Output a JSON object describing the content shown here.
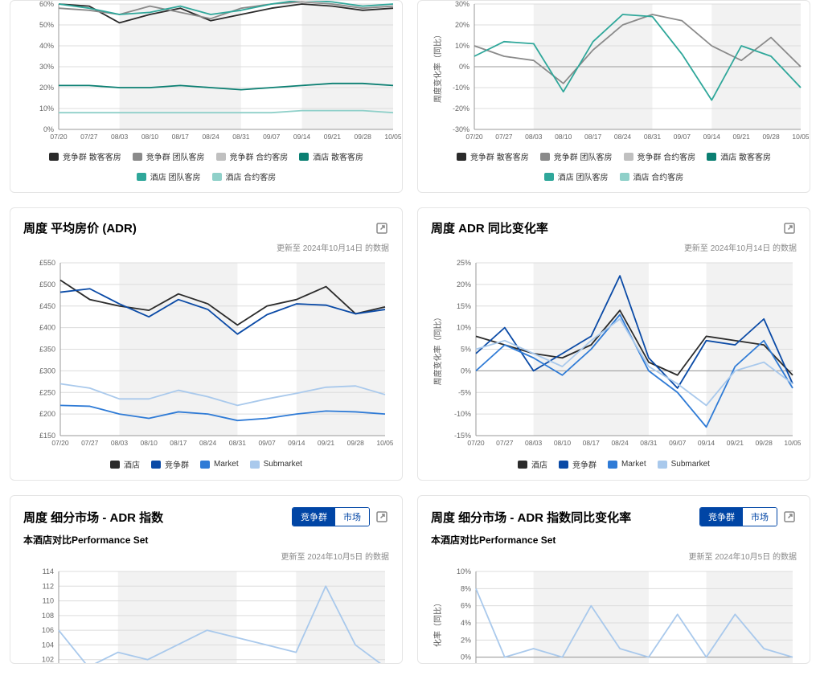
{
  "colors": {
    "axis": "#666666",
    "grid": "#dcdcdc",
    "band": "#f2f2f2",
    "text": "#333333",
    "black": "#2b2b2b",
    "darkblue": "#0a4aa6",
    "medblue": "#2f7bd6",
    "lightblue": "#a9c9ec",
    "teal_dark": "#0b7f72",
    "teal_light": "#8fd0c9",
    "grey_mid": "#8a8a8a"
  },
  "xcats": [
    "07/20",
    "07/27",
    "08/03",
    "08/10",
    "08/17",
    "08/24",
    "08/31",
    "09/07",
    "09/14",
    "09/21",
    "09/28",
    "10/05"
  ],
  "update_note_1014": "更新至 2024年10月14日 的数据",
  "update_note_1005": "更新至 2024年10月5日 的数据",
  "panel_top_left": {
    "type": "line",
    "ylim": [
      0,
      60
    ],
    "ytick_step": 10,
    "yfmt": "pct",
    "bands": [
      [
        2,
        6
      ],
      [
        8,
        12
      ]
    ],
    "axis_label_y": "",
    "series": [
      {
        "name": "竞争群 散客客房",
        "color": "#2b2b2b",
        "values": [
          60,
          59,
          51,
          55,
          58,
          52,
          55,
          58,
          60,
          59,
          57,
          58
        ]
      },
      {
        "name": "竞争群 团队客房",
        "color": "#8a8a8a",
        "values": [
          58,
          57,
          55,
          59,
          56,
          53,
          58,
          60,
          61,
          60,
          58,
          59
        ]
      },
      {
        "name": "竞争群 合约客房",
        "color": "#c0c0c0",
        "values": [
          null,
          null,
          null,
          null,
          null,
          null,
          null,
          null,
          null,
          null,
          null,
          null
        ]
      },
      {
        "name": "酒店 散客客房",
        "color": "#0b7f72",
        "values": [
          21,
          21,
          20,
          20,
          21,
          20,
          19,
          20,
          21,
          22,
          22,
          21
        ]
      },
      {
        "name": "酒店 团队客房",
        "color": "#2fa79a",
        "values": [
          60,
          58,
          55,
          56,
          59,
          55,
          57,
          60,
          62,
          61,
          59,
          60
        ]
      },
      {
        "name": "酒店 合约客房",
        "color": "#8fd0c9",
        "values": [
          8,
          8,
          8,
          8,
          8,
          8,
          8,
          8,
          9,
          9,
          9,
          8
        ]
      }
    ]
  },
  "panel_top_right": {
    "type": "line",
    "ylim": [
      -30,
      30
    ],
    "ytick_step": 10,
    "yfmt": "pct",
    "zero_line": true,
    "axis_label_y": "周度变化率（同比）",
    "bands": [
      [
        2,
        6
      ],
      [
        8,
        12
      ]
    ],
    "series": [
      {
        "name": "竞争群 散客客房",
        "color": "#2b2b2b",
        "values": [
          null,
          null,
          null,
          null,
          null,
          null,
          null,
          null,
          null,
          null,
          null,
          null
        ]
      },
      {
        "name": "竞争群 团队客房",
        "color": "#8a8a8a",
        "values": [
          10,
          5,
          3,
          -8,
          8,
          20,
          25,
          22,
          10,
          3,
          14,
          0
        ]
      },
      {
        "name": "竞争群 合约客房",
        "color": "#c0c0c0",
        "values": [
          null,
          null,
          null,
          null,
          null,
          null,
          null,
          null,
          null,
          null,
          null,
          null
        ]
      },
      {
        "name": "酒店 散客客房",
        "color": "#0b7f72",
        "values": [
          null,
          null,
          null,
          null,
          null,
          null,
          null,
          null,
          null,
          null,
          null,
          null
        ]
      },
      {
        "name": "酒店 团队客房",
        "color": "#2fa79a",
        "values": [
          5,
          12,
          11,
          -12,
          12,
          25,
          24,
          6,
          -16,
          10,
          5,
          -10
        ]
      },
      {
        "name": "酒店 合约客房",
        "color": "#8fd0c9",
        "values": [
          null,
          null,
          null,
          null,
          null,
          null,
          null,
          null,
          null,
          null,
          null,
          null
        ]
      }
    ]
  },
  "panel_adr": {
    "title": "周度 平均房价 (ADR)",
    "type": "line",
    "ylim": [
      150,
      550
    ],
    "ytick_step": 50,
    "yfmt": "gbp",
    "bands": [
      [
        2,
        6
      ],
      [
        8,
        12
      ]
    ],
    "series": [
      {
        "name": "酒店",
        "color": "#2b2b2b",
        "values": [
          510,
          465,
          450,
          440,
          478,
          455,
          406,
          450,
          465,
          495,
          432,
          448
        ]
      },
      {
        "name": "竞争群",
        "color": "#0a4aa6",
        "values": [
          482,
          490,
          455,
          425,
          465,
          442,
          385,
          430,
          455,
          452,
          432,
          442
        ]
      },
      {
        "name": "Market",
        "color": "#2f7bd6",
        "values": [
          220,
          218,
          200,
          190,
          205,
          200,
          185,
          190,
          200,
          207,
          205,
          200
        ]
      },
      {
        "name": "Submarket",
        "color": "#a9c9ec",
        "values": [
          270,
          260,
          235,
          235,
          255,
          240,
          220,
          235,
          248,
          262,
          265,
          245
        ]
      }
    ]
  },
  "panel_adr_yoy": {
    "title": "周度 ADR 同比变化率",
    "type": "line",
    "ylim": [
      -15,
      25
    ],
    "ytick_step": 5,
    "yfmt": "pct",
    "zero_line": true,
    "axis_label_y": "周度变化率（同比）",
    "bands": [
      [
        2,
        6
      ],
      [
        8,
        12
      ]
    ],
    "series": [
      {
        "name": "酒店",
        "color": "#2b2b2b",
        "values": [
          8,
          6,
          4,
          3,
          6,
          14,
          2,
          -1,
          8,
          7,
          6,
          -1
        ]
      },
      {
        "name": "竞争群",
        "color": "#0a4aa6",
        "values": [
          4,
          10,
          0,
          4,
          8,
          22,
          3,
          -4,
          7,
          6,
          12,
          -3
        ]
      },
      {
        "name": "Market",
        "color": "#2f7bd6",
        "values": [
          0,
          6,
          3,
          -1,
          5,
          13,
          0,
          -5,
          -13,
          1,
          7,
          -4
        ]
      },
      {
        "name": "Submarket",
        "color": "#a9c9ec",
        "values": [
          5,
          7,
          4,
          1,
          7,
          12,
          1,
          -3,
          -8,
          0,
          2,
          -3
        ]
      }
    ]
  },
  "panel_seg_adr": {
    "title": "周度 细分市场 - ADR 指数",
    "subtitle": "本酒店对比Performance Set",
    "toggle": {
      "options": [
        "竞争群",
        "市场"
      ],
      "active": 0
    },
    "type": "line",
    "ylim": [
      100,
      114
    ],
    "ytick_step": 2,
    "yfmt": "num",
    "bands": [
      [
        2,
        6
      ],
      [
        8,
        12
      ]
    ],
    "series": [
      {
        "name": "",
        "color": "#a9c9ec",
        "values": [
          106,
          101,
          103,
          102,
          104,
          106,
          105,
          104,
          103,
          112,
          104,
          101
        ]
      }
    ]
  },
  "panel_seg_adr_yoy": {
    "title": "周度 细分市场 - ADR 指数同比变化率",
    "subtitle": "本酒店对比Performance Set",
    "toggle": {
      "options": [
        "竞争群",
        "市场"
      ],
      "active": 0
    },
    "type": "line",
    "ylim": [
      -2,
      10
    ],
    "ytick_step": 2,
    "yfmt": "pct",
    "zero_line": true,
    "axis_label_y": "化率（同比）",
    "bands": [
      [
        2,
        6
      ],
      [
        8,
        12
      ]
    ],
    "series": [
      {
        "name": "",
        "color": "#a9c9ec",
        "values": [
          8,
          0,
          1,
          0,
          6,
          1,
          0,
          5,
          0,
          5,
          1,
          0
        ]
      }
    ]
  }
}
